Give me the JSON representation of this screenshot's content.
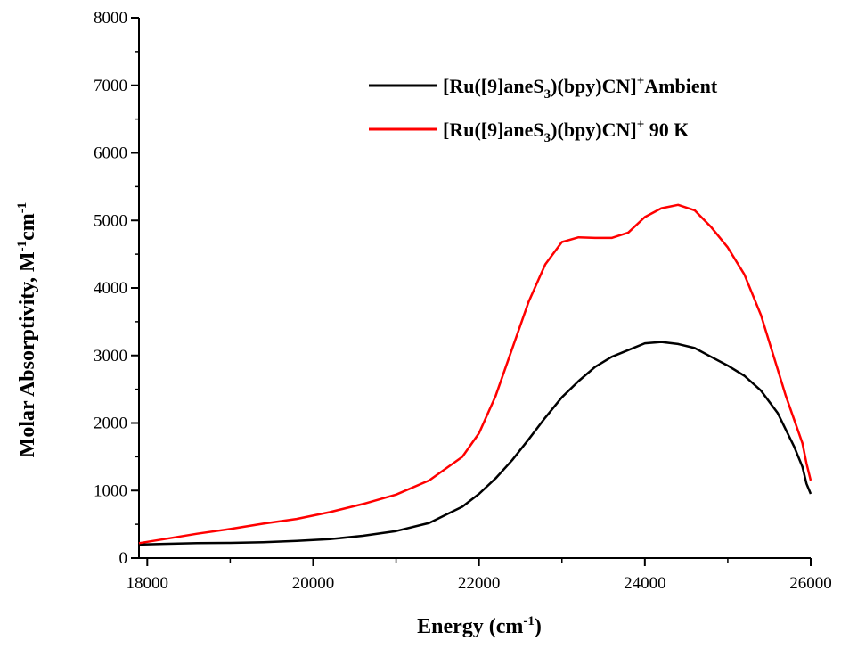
{
  "chart_data": {
    "type": "line",
    "title": "",
    "xlabel": {
      "main": "Energy (cm",
      "sup": "-1",
      "end": ")"
    },
    "ylabel": {
      "main": "Molar Absorptivity, M",
      "sup1": "-1",
      "mid": "cm",
      "sup2": "-1"
    },
    "xlim": [
      17900,
      26000
    ],
    "ylim": [
      0,
      8000
    ],
    "x_ticks": [
      18000,
      20000,
      22000,
      24000,
      26000
    ],
    "y_ticks": [
      0,
      1000,
      2000,
      3000,
      4000,
      5000,
      6000,
      7000,
      8000
    ],
    "grid": false,
    "legend_position": "top-right",
    "series": [
      {
        "name": {
          "pre": "[Ru([9]aneS",
          "sub": "3",
          "mid": ")(bpy)CN]",
          "sup": "+",
          "post": "Ambient"
        },
        "color": "#000000",
        "x": [
          17900,
          18200,
          18600,
          19000,
          19400,
          19800,
          20200,
          20600,
          21000,
          21400,
          21800,
          22000,
          22200,
          22400,
          22600,
          22800,
          23000,
          23200,
          23400,
          23600,
          23800,
          24000,
          24200,
          24400,
          24600,
          24800,
          25000,
          25200,
          25400,
          25600,
          25700,
          25800,
          25900,
          25950,
          26000
        ],
        "y": [
          200,
          210,
          220,
          225,
          235,
          255,
          280,
          330,
          400,
          520,
          760,
          950,
          1180,
          1450,
          1760,
          2080,
          2380,
          2620,
          2830,
          2980,
          3080,
          3180,
          3200,
          3170,
          3110,
          2980,
          2850,
          2700,
          2480,
          2150,
          1900,
          1650,
          1350,
          1100,
          950
        ]
      },
      {
        "name": {
          "pre": "[Ru([9]aneS",
          "sub": "3",
          "mid": ")(bpy)CN]",
          "sup": "+",
          "post": " 90 K"
        },
        "color": "#ff0000",
        "x": [
          17900,
          18200,
          18600,
          19000,
          19400,
          19800,
          20200,
          20600,
          21000,
          21400,
          21800,
          22000,
          22200,
          22400,
          22600,
          22800,
          23000,
          23200,
          23400,
          23600,
          23800,
          24000,
          24200,
          24400,
          24600,
          24800,
          25000,
          25200,
          25400,
          25600,
          25700,
          25800,
          25900,
          25950,
          26000
        ],
        "y": [
          220,
          280,
          360,
          430,
          510,
          580,
          680,
          800,
          940,
          1150,
          1500,
          1850,
          2400,
          3100,
          3800,
          4350,
          4680,
          4750,
          4740,
          4740,
          4820,
          5050,
          5180,
          5230,
          5150,
          4900,
          4600,
          4200,
          3600,
          2800,
          2400,
          2050,
          1700,
          1400,
          1150
        ]
      }
    ]
  }
}
